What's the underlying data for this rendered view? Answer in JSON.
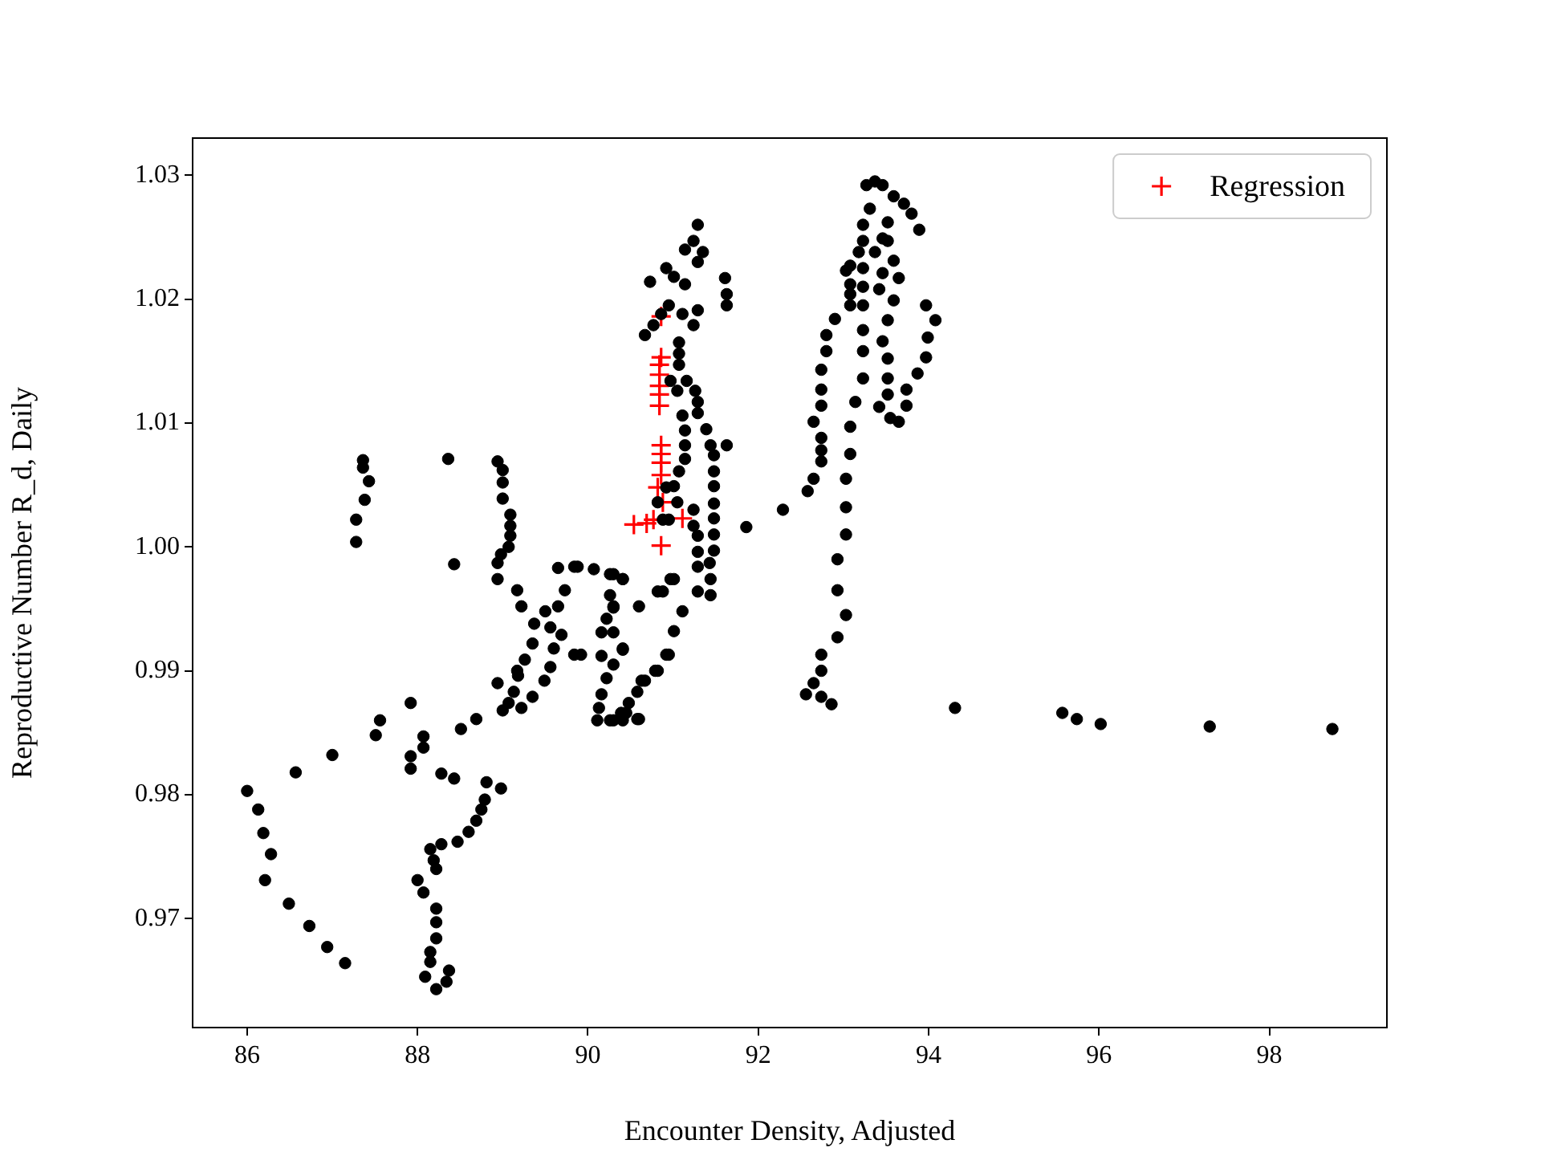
{
  "chart_data": {
    "type": "scatter",
    "xlabel": "Encounter Density, Adjusted",
    "ylabel": "Reproductive Number R_d, Daily",
    "xlim": [
      85.36,
      99.38
    ],
    "ylim": [
      0.9612,
      1.033
    ],
    "xticks": [
      86,
      88,
      90,
      92,
      94,
      96,
      98
    ],
    "yticks": [
      0.97,
      0.98,
      0.99,
      {
        "value": 1,
        "label": "1.00"
      },
      1.01,
      1.02,
      1.03
    ],
    "grid": false,
    "legend": "top right",
    "series": [
      {
        "color": "#000000",
        "marker": "circle",
        "x": [
          86.0,
          86.13,
          86.19,
          86.28,
          86.21,
          86.49,
          86.73,
          86.94,
          87.15,
          86.57,
          87.0,
          87.51,
          87.56,
          87.92,
          87.36,
          87.36,
          87.43,
          87.38,
          87.28,
          87.28,
          88.36,
          88.43,
          88.94,
          89.0,
          89.0,
          89.0,
          89.09,
          89.09,
          89.09,
          89.07,
          88.98,
          88.94,
          88.94,
          89.17,
          89.22,
          88.94,
          89.17,
          89.35,
          89.49,
          89.0,
          89.22,
          88.69,
          88.51,
          88.07,
          88.07,
          87.92,
          87.92,
          88.28,
          88.43,
          88.81,
          88.98,
          88.79,
          88.75,
          88.69,
          88.6,
          88.47,
          88.28,
          88.15,
          88.19,
          88.22,
          88.0,
          88.07,
          88.22,
          88.22,
          88.22,
          88.15,
          88.15,
          88.09,
          88.22,
          88.37,
          88.34,
          89.65,
          89.84,
          90.07,
          90.26,
          90.41,
          89.73,
          89.65,
          89.5,
          89.37,
          89.56,
          89.69,
          89.6,
          89.35,
          89.26,
          89.18,
          89.13,
          89.07,
          89.56,
          89.84,
          90.3,
          90.22,
          90.16,
          90.3,
          90.41,
          90.3,
          90.22,
          90.16,
          90.11,
          90.3,
          90.45,
          90.58,
          90.63,
          90.79,
          90.92,
          90.6,
          90.82,
          90.97,
          91.29,
          91.24,
          91.14,
          91.35,
          91.29,
          90.92,
          91.01,
          90.73,
          91.14,
          91.61,
          91.63,
          91.63,
          91.29,
          91.11,
          90.95,
          90.86,
          90.77,
          90.67,
          91.24,
          91.07,
          91.07,
          91.07,
          90.97,
          91.16,
          91.05,
          91.26,
          91.29,
          91.29,
          91.11,
          91.39,
          91.14,
          91.14,
          91.44,
          91.63,
          91.14,
          91.48,
          91.07,
          91.48,
          91.48,
          91.01,
          90.92,
          90.82,
          91.05,
          91.24,
          91.48,
          91.48,
          91.24,
          91.48,
          91.29,
          90.88,
          90.95,
          91.86,
          91.48,
          91.29,
          91.29,
          91.43,
          91.44,
          91.44,
          91.29,
          91.01,
          91.11,
          91.01,
          90.95,
          90.82,
          90.67,
          90.58,
          90.48,
          90.39,
          90.6,
          90.41,
          90.26,
          90.13,
          90.16,
          90.41,
          90.88,
          89.92,
          89.88,
          90.3,
          90.41,
          90.26,
          90.3,
          93.37,
          93.27,
          93.46,
          93.59,
          93.71,
          93.8,
          93.89,
          93.31,
          93.23,
          93.52,
          93.46,
          93.52,
          93.23,
          93.18,
          93.37,
          93.59,
          93.08,
          93.03,
          93.23,
          93.46,
          93.65,
          93.08,
          93.23,
          93.42,
          93.08,
          93.08,
          93.23,
          93.59,
          93.97,
          94.08,
          92.9,
          93.52,
          93.23,
          92.8,
          93.99,
          93.46,
          92.8,
          93.23,
          93.97,
          93.52,
          92.74,
          93.87,
          93.23,
          92.74,
          93.52,
          92.74,
          93.52,
          93.74,
          93.74,
          93.14,
          93.42,
          93.55,
          93.65,
          92.65,
          92.74,
          93.08,
          92.74,
          92.74,
          93.08,
          92.65,
          92.58,
          93.03,
          92.29,
          93.03,
          93.03,
          92.93,
          92.93,
          93.03,
          92.93,
          92.74,
          92.74,
          92.65,
          92.56,
          92.74,
          92.86,
          94.31,
          95.57,
          95.74,
          96.02,
          97.3,
          98.74
        ],
        "values": [
          0.9803,
          0.9788,
          0.9769,
          0.9752,
          0.9731,
          0.9712,
          0.9694,
          0.9677,
          0.9664,
          0.9818,
          0.9832,
          0.9848,
          0.986,
          0.9874,
          1.007,
          1.0064,
          1.0053,
          1.0038,
          1.0022,
          1.0004,
          1.0071,
          0.9986,
          1.0069,
          1.0062,
          1.0052,
          1.0039,
          1.0026,
          1.0017,
          1.0009,
          1.0,
          0.9994,
          0.9987,
          0.9974,
          0.9965,
          0.9952,
          0.989,
          0.99,
          0.9879,
          0.9892,
          0.9868,
          0.987,
          0.9861,
          0.9853,
          0.9847,
          0.9838,
          0.9831,
          0.9821,
          0.9817,
          0.9813,
          0.981,
          0.9805,
          0.9796,
          0.9788,
          0.9779,
          0.977,
          0.9762,
          0.976,
          0.9756,
          0.9747,
          0.974,
          0.9731,
          0.9721,
          0.9708,
          0.9697,
          0.9684,
          0.9673,
          0.9665,
          0.9653,
          0.9643,
          0.9658,
          0.9649,
          0.9983,
          0.9984,
          0.9982,
          0.9978,
          0.9974,
          0.9965,
          0.9952,
          0.9948,
          0.9938,
          0.9935,
          0.9929,
          0.9918,
          0.9922,
          0.9909,
          0.9896,
          0.9883,
          0.9874,
          0.9903,
          0.9913,
          0.9952,
          0.9942,
          0.9931,
          0.9931,
          0.9918,
          0.9905,
          0.9894,
          0.9881,
          0.986,
          0.986,
          0.9866,
          0.9861,
          0.9892,
          0.99,
          0.9913,
          0.9952,
          0.9964,
          0.9974,
          1.026,
          1.0247,
          1.024,
          1.0238,
          1.023,
          1.0225,
          1.0218,
          1.0214,
          1.0212,
          1.0217,
          1.0204,
          1.0195,
          1.0191,
          1.0188,
          1.0195,
          1.0188,
          1.0179,
          1.0171,
          1.0179,
          1.0165,
          1.0156,
          1.0147,
          1.0134,
          1.0134,
          1.0126,
          1.0126,
          1.0117,
          1.0108,
          1.0106,
          1.0095,
          1.0094,
          1.0082,
          1.0082,
          1.0082,
          1.0071,
          1.0074,
          1.0061,
          1.0061,
          1.0049,
          1.0049,
          1.0048,
          1.0036,
          1.0036,
          1.003,
          1.0035,
          1.0023,
          1.0017,
          1.001,
          1.0009,
          1.0022,
          1.0022,
          1.0016,
          0.9997,
          0.9996,
          0.9984,
          0.9987,
          0.9974,
          0.9961,
          0.9964,
          0.9974,
          0.9948,
          0.9932,
          0.9913,
          0.99,
          0.9892,
          0.9883,
          0.9874,
          0.9866,
          0.9861,
          0.986,
          0.986,
          0.987,
          0.9912,
          0.9917,
          0.9964,
          0.9913,
          0.9984,
          0.9978,
          0.9974,
          0.9961,
          0.9951,
          1.0295,
          1.0292,
          1.0292,
          1.0283,
          1.0277,
          1.0269,
          1.0256,
          1.0273,
          1.026,
          1.0262,
          1.0249,
          1.0247,
          1.0247,
          1.0238,
          1.0238,
          1.0231,
          1.0227,
          1.0223,
          1.0225,
          1.0221,
          1.0217,
          1.0212,
          1.021,
          1.0208,
          1.0204,
          1.0195,
          1.0195,
          1.0199,
          1.0195,
          1.0183,
          1.0184,
          1.0183,
          1.0175,
          1.0171,
          1.0169,
          1.0166,
          1.0158,
          1.0158,
          1.0153,
          1.0152,
          1.0143,
          1.014,
          1.0136,
          1.0127,
          1.0136,
          1.0114,
          1.0123,
          1.0127,
          1.0114,
          1.0117,
          1.0113,
          1.0104,
          1.0101,
          1.0101,
          1.0088,
          1.0097,
          1.0078,
          1.0069,
          1.0075,
          1.0055,
          1.0045,
          1.0055,
          1.003,
          1.0032,
          1.001,
          0.999,
          0.9965,
          0.9945,
          0.9927,
          0.9913,
          0.99,
          0.989,
          0.9881,
          0.9879,
          0.9873,
          0.987,
          0.9866,
          0.9861,
          0.9857,
          0.9855,
          0.9853
        ]
      },
      {
        "name": "Regression",
        "color": "#ff0000",
        "marker": "cross",
        "x": [
          90.86,
          90.86,
          90.84,
          90.84,
          90.84,
          90.84,
          90.84,
          90.86,
          90.86,
          90.86,
          90.86,
          90.82,
          90.88,
          90.54,
          90.69,
          90.77,
          91.11,
          90.86
        ],
        "values": [
          1.0186,
          1.0153,
          1.0147,
          1.0139,
          1.013,
          1.0123,
          1.0114,
          1.0082,
          1.0075,
          1.0068,
          1.0058,
          1.0048,
          1.0036,
          1.0018,
          1.0019,
          1.0022,
          1.0023,
          1.0001
        ]
      }
    ]
  }
}
